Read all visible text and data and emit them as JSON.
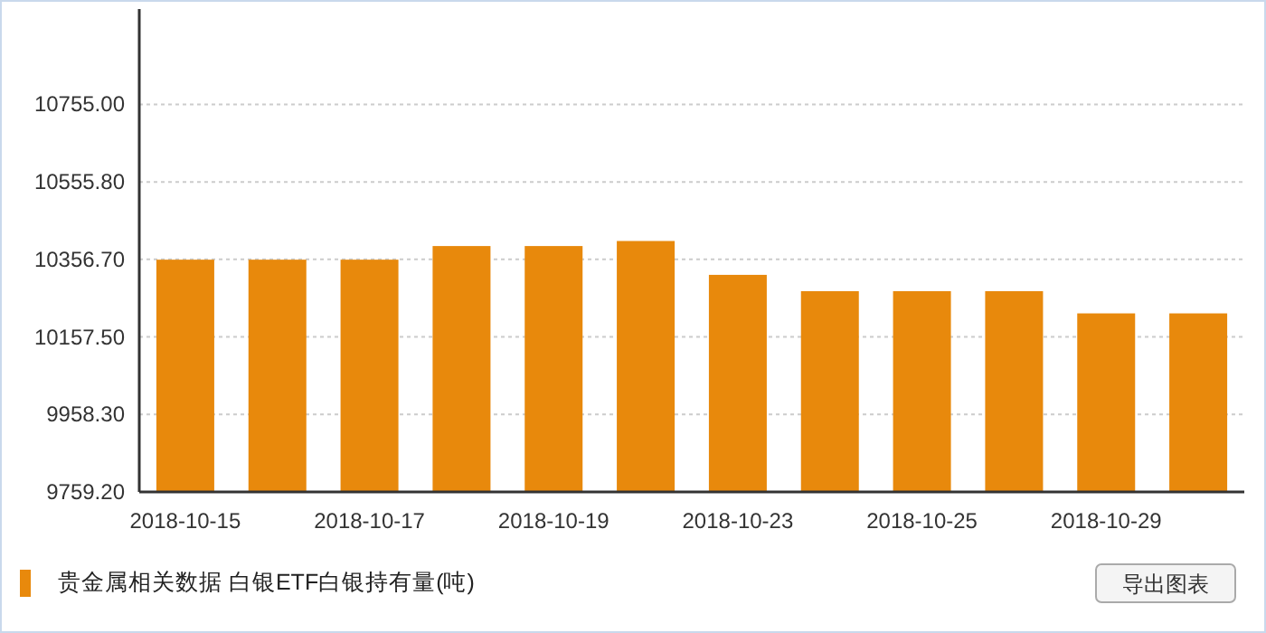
{
  "chart_data": {
    "type": "bar",
    "categories": [
      "2018-10-15",
      null,
      "2018-10-17",
      null,
      "2018-10-19",
      null,
      "2018-10-23",
      null,
      "2018-10-25",
      null,
      "2018-10-29",
      null
    ],
    "series": [
      {
        "name": "贵金属相关数据 白银ETF白银持有量(吨)",
        "color": "#e8890c",
        "values": [
          10356,
          10356,
          10356,
          10391,
          10391,
          10404,
          10317,
          10275,
          10275,
          10275,
          10218,
          10218
        ]
      }
    ],
    "ylim": [
      9759.2,
      11000
    ],
    "yticks": [
      {
        "value": 9759.2,
        "label": "9759.20"
      },
      {
        "value": 9958.3,
        "label": "9958.30"
      },
      {
        "value": 10157.5,
        "label": "10157.50"
      },
      {
        "value": 10356.7,
        "label": "10356.70"
      },
      {
        "value": 10555.8,
        "label": "10555.80"
      },
      {
        "value": 10755.0,
        "label": "10755.00"
      }
    ],
    "grid": "y",
    "legend": "bottom left",
    "annotations": [
      "导出图表"
    ]
  }
}
